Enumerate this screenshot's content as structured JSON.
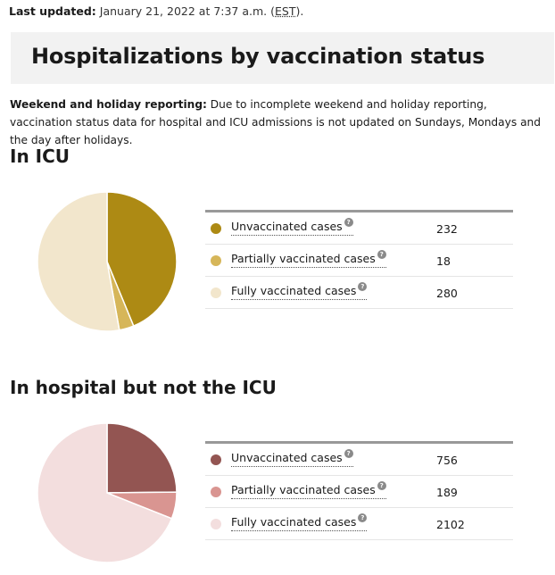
{
  "last_updated": {
    "label": "Last updated:",
    "text_before": "January 21, 2022 at 7:37 a.m. (",
    "abbr": "EST",
    "text_after": ")."
  },
  "page_title": "Hospitalizations by vaccination status",
  "note": {
    "label": "Weekend and holiday reporting:",
    "text": "Due to incomplete weekend and holiday reporting, vaccination status data for hospital and ICU admissions is not updated on Sundays, Mondays and the day after holidays."
  },
  "help_glyph": "?",
  "chart_data": [
    {
      "type": "pie",
      "title": "In ICU",
      "categories": [
        "Unvaccinated cases",
        "Partially vaccinated cases",
        "Fully vaccinated cases"
      ],
      "values": [
        232,
        18,
        280
      ],
      "colors": [
        "#ad8a14",
        "#d6b659",
        "#f2e6cc"
      ]
    },
    {
      "type": "pie",
      "title": "In hospital but not the ICU",
      "categories": [
        "Unvaccinated cases",
        "Partially vaccinated cases",
        "Fully vaccinated cases"
      ],
      "values": [
        756,
        189,
        2102
      ],
      "colors": [
        "#935552",
        "#d99591",
        "#f3dede"
      ]
    }
  ]
}
